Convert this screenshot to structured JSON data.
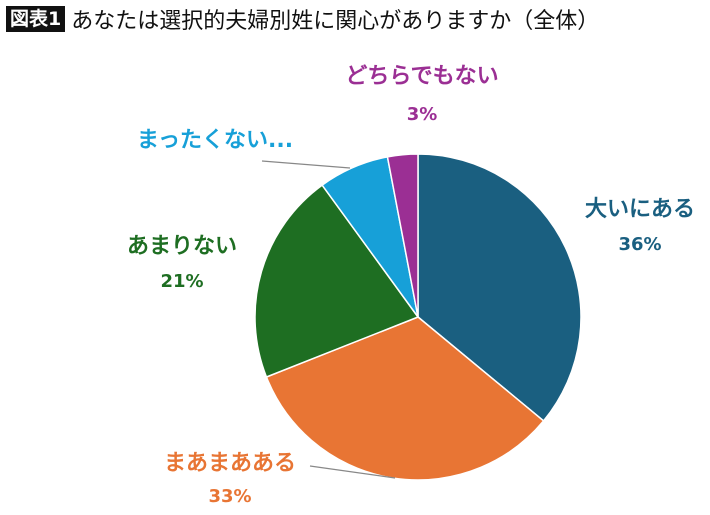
{
  "chart_data": {
    "type": "pie",
    "badge": "図表1",
    "title": "あなたは選択的夫婦別姓に関心がありますか（全体）",
    "start": "top",
    "direction": "clockwise",
    "slices": [
      {
        "label": "大いにある",
        "value": 36,
        "value_label": "36%",
        "color": "#1a5f80"
      },
      {
        "label": "まあまあある",
        "value": 33,
        "value_label": "33%",
        "color": "#e87534"
      },
      {
        "label": "あまりない",
        "value": 21,
        "value_label": "21%",
        "color": "#1e6e22"
      },
      {
        "label": "まったくない...",
        "value": 7,
        "value_label": "",
        "color": "#17a0d8"
      },
      {
        "label": "どちらでもない",
        "value": 3,
        "value_label": "3%",
        "color": "#9b2f94"
      }
    ]
  }
}
